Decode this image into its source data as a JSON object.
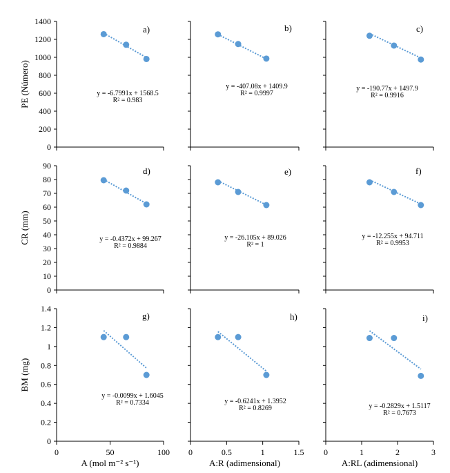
{
  "chart_data": [
    {
      "id": "a",
      "type": "scatter",
      "panel_label": "a)",
      "x": [
        44,
        65,
        84
      ],
      "y": [
        1258,
        1140,
        981
      ],
      "xlim": [
        0,
        100
      ],
      "ylim": [
        0,
        1400
      ],
      "ylabel": "PE (Número)",
      "yticks": [
        "0",
        "200",
        "400",
        "600",
        "800",
        "1000",
        "1200",
        "1400"
      ],
      "trendline": {
        "slope": -6.7991,
        "intercept": 1568.5
      },
      "equation": "y = -6.7991x + 1568.5",
      "r2": "R² = 0.983"
    },
    {
      "id": "b",
      "type": "scatter",
      "panel_label": "b)",
      "x": [
        0.38,
        0.66,
        1.05
      ],
      "y": [
        1256,
        1148,
        986
      ],
      "xlim": [
        0,
        1.5
      ],
      "ylim": [
        0,
        1400
      ],
      "trendline": {
        "slope": -407.08,
        "intercept": 1409.9
      },
      "equation": "y = -407.08x + 1409.9",
      "r2": "R² = 0.9997"
    },
    {
      "id": "c",
      "type": "scatter",
      "panel_label": "c)",
      "x": [
        1.22,
        1.9,
        2.65
      ],
      "y": [
        1240,
        1131,
        975
      ],
      "xlim": [
        0,
        3
      ],
      "ylim": [
        0,
        1400
      ],
      "trendline": {
        "slope": -190.77,
        "intercept": 1497.9
      },
      "equation": "y = -190.77x + 1497.9",
      "r2": "R² = 0.9916"
    },
    {
      "id": "d",
      "type": "scatter",
      "panel_label": "d)",
      "x": [
        44,
        65,
        84
      ],
      "y": [
        79.5,
        72,
        62
      ],
      "xlim": [
        0,
        100
      ],
      "ylim": [
        0,
        90
      ],
      "ylabel": "CR (mm)",
      "yticks": [
        "0",
        "10",
        "20",
        "30",
        "40",
        "50",
        "60",
        "70",
        "80",
        "90"
      ],
      "trendline": {
        "slope": -0.4372,
        "intercept": 99.267
      },
      "equation": "y = -0.4372x + 99.267",
      "r2": "R² = 0.9884"
    },
    {
      "id": "e",
      "type": "scatter",
      "panel_label": "e)",
      "x": [
        0.38,
        0.66,
        1.05
      ],
      "y": [
        78,
        71,
        61.5
      ],
      "xlim": [
        0,
        1.5
      ],
      "ylim": [
        0,
        90
      ],
      "trendline": {
        "slope": -26.105,
        "intercept": 89.026
      },
      "equation": "y = -26.105x + 89.026",
      "r2": "R² = 1"
    },
    {
      "id": "f",
      "type": "scatter",
      "panel_label": "f)",
      "x": [
        1.22,
        1.9,
        2.65
      ],
      "y": [
        78,
        71,
        61.5
      ],
      "xlim": [
        0,
        3
      ],
      "ylim": [
        0,
        90
      ],
      "trendline": {
        "slope": -12.255,
        "intercept": 94.711
      },
      "equation": "y = -12.255x + 94.711",
      "r2": "R² = 0.9953"
    },
    {
      "id": "g",
      "type": "scatter",
      "panel_label": "g)",
      "x": [
        44,
        65,
        84
      ],
      "y": [
        1.1,
        1.1,
        0.7
      ],
      "xlim": [
        0,
        100
      ],
      "ylim": [
        0,
        1.4
      ],
      "ylabel": "BM (mg)",
      "xlabel": "A (mol m⁻² s⁻¹)",
      "yticks": [
        "0",
        "0.2",
        "0.4",
        "0.6",
        "0.8",
        "1",
        "1.2",
        "1.4"
      ],
      "xticks": [
        "0",
        "50",
        "100"
      ],
      "trendline": {
        "slope": -0.0099,
        "intercept": 1.6045
      },
      "equation": "y = -0.0099x + 1.6045",
      "r2": "R² = 0.7334"
    },
    {
      "id": "h",
      "type": "scatter",
      "panel_label": "h)",
      "x": [
        0.38,
        0.66,
        1.05
      ],
      "y": [
        1.1,
        1.1,
        0.7
      ],
      "xlim": [
        0,
        1.5
      ],
      "ylim": [
        0,
        1.4
      ],
      "xlabel": "A:R (adimensional)",
      "xticks": [
        "0",
        "0.5",
        "1",
        "1.5"
      ],
      "trendline": {
        "slope": -0.6241,
        "intercept": 1.3952
      },
      "equation": "y = -0.6241x + 1.3952",
      "r2": "R² = 0.8269"
    },
    {
      "id": "i",
      "type": "scatter",
      "panel_label": "i)",
      "x": [
        1.22,
        1.9,
        2.65
      ],
      "y": [
        1.09,
        1.09,
        0.69
      ],
      "xlim": [
        0,
        3
      ],
      "ylim": [
        0,
        1.4
      ],
      "xlabel": "A:RL (adimensional)",
      "xticks": [
        "0",
        "1",
        "2",
        "3"
      ],
      "trendline": {
        "slope": -0.2829,
        "intercept": 1.5117
      },
      "equation": "y = -0.2829x + 1.5117",
      "r2": "R² = 0.7673"
    }
  ],
  "colors": {
    "points": "#5b9bd5",
    "trendline": "#5b9bd5",
    "axes": "#000000"
  }
}
